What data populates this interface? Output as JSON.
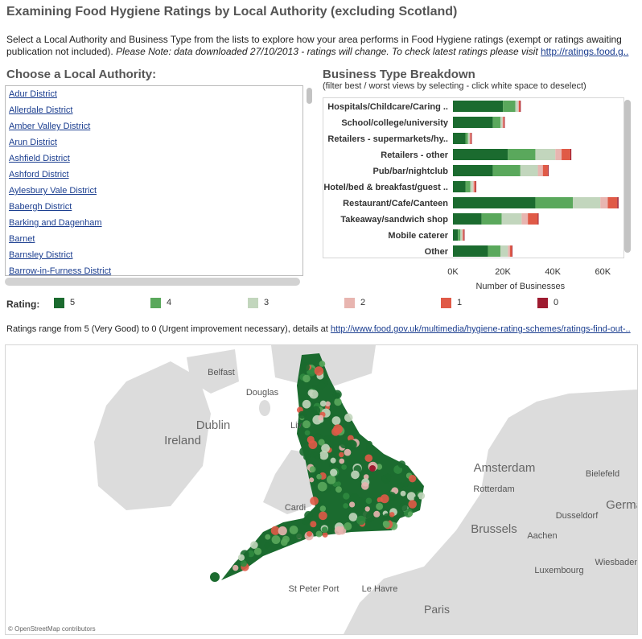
{
  "title": "Examining Food Hygiene Ratings by Local Authority  (excluding Scotland)",
  "intro": {
    "text": "Select a Local Authority and Business Type from the lists to explore how your area performs in Food Hygiene ratings (exempt or ratings awaiting publication not included).",
    "note": "Please Note: data downloaded 27/10/2013 - ratings will change. To check latest ratings please visit",
    "link": "http://ratings.food.g.."
  },
  "local_authority": {
    "header": "Choose a Local Authority:",
    "items": [
      "Adur District",
      "Allerdale District",
      "Amber Valley District",
      "Arun District",
      "Ashfield District",
      "Ashford District",
      "Aylesbury Vale District",
      "Babergh District",
      "Barking and Dagenham",
      "Barnet",
      "Barnsley District",
      "Barrow-in-Furness District"
    ]
  },
  "business_type": {
    "header": "Business Type Breakdown",
    "subtitle": "(filter best / worst views by selecting - click white space to deselect)"
  },
  "chart_data": {
    "type": "bar",
    "orientation": "horizontal",
    "stacked": true,
    "categories": [
      "Hospitals/Childcare/Caring ..",
      "School/college/university",
      "Retailers - supermarkets/hy..",
      "Retailers - other",
      "Pub/bar/nightclub",
      "Hotel/bed & breakfast/guest ..",
      "Restaurant/Cafe/Canteen",
      "Takeaway/sandwich shop",
      "Mobile caterer",
      "Other"
    ],
    "series": [
      {
        "name": "5",
        "color": "#1b6b2f",
        "values": [
          20000,
          16000,
          5000,
          22000,
          16000,
          5000,
          33000,
          11500,
          2000,
          14000
        ]
      },
      {
        "name": "4",
        "color": "#5aa85c",
        "values": [
          5000,
          3000,
          1000,
          11000,
          11000,
          2000,
          15000,
          8000,
          1000,
          5000
        ]
      },
      {
        "name": "3",
        "color": "#c2d6bd",
        "values": [
          1000,
          800,
          600,
          8000,
          7000,
          1000,
          11000,
          8000,
          700,
          3000
        ]
      },
      {
        "name": "2",
        "color": "#e8b5b0",
        "values": [
          400,
          300,
          300,
          2500,
          2000,
          500,
          3000,
          2500,
          300,
          800
        ]
      },
      {
        "name": "1",
        "color": "#e05a47",
        "values": [
          500,
          400,
          400,
          3500,
          2000,
          600,
          3800,
          4000,
          400,
          800
        ]
      },
      {
        "name": "0",
        "color": "#9e1b30",
        "values": [
          150,
          100,
          100,
          400,
          300,
          100,
          500,
          300,
          100,
          150
        ]
      }
    ],
    "xticks": [
      "0K",
      "20K",
      "40K",
      "60K"
    ],
    "xlim": [
      0,
      67000
    ],
    "xlabel": "Number of Businesses",
    "grid": false
  },
  "rating_legend": {
    "label": "Rating:",
    "items": [
      {
        "value": "5",
        "color": "#1b6b2f"
      },
      {
        "value": "4",
        "color": "#5aa85c"
      },
      {
        "value": "3",
        "color": "#c2d6bd"
      },
      {
        "value": "2",
        "color": "#e8b5b0"
      },
      {
        "value": "1",
        "color": "#e05a47"
      },
      {
        "value": "0",
        "color": "#9e1b30"
      }
    ]
  },
  "range": {
    "text": "Ratings range from 5 (Very Good) to 0 (Urgent improvement necessary), details at",
    "link": "http://www.food.gov.uk/multimedia/hygiene-rating-schemes/ratings-find-out-.."
  },
  "map": {
    "labels": [
      "Belfast",
      "Douglas",
      "Dublin",
      "Ireland",
      "Liv",
      "Cardi",
      "St Peter Port",
      "Le Havre",
      "Paris",
      "Amsterdam",
      "Rotterdam",
      "Brussels",
      "Bielefeld",
      "Dusseldorf",
      "Aachen",
      "Luxembourg",
      "Wiesbaden",
      "Germany"
    ],
    "attribution": "© OpenStreetMap contributors"
  }
}
